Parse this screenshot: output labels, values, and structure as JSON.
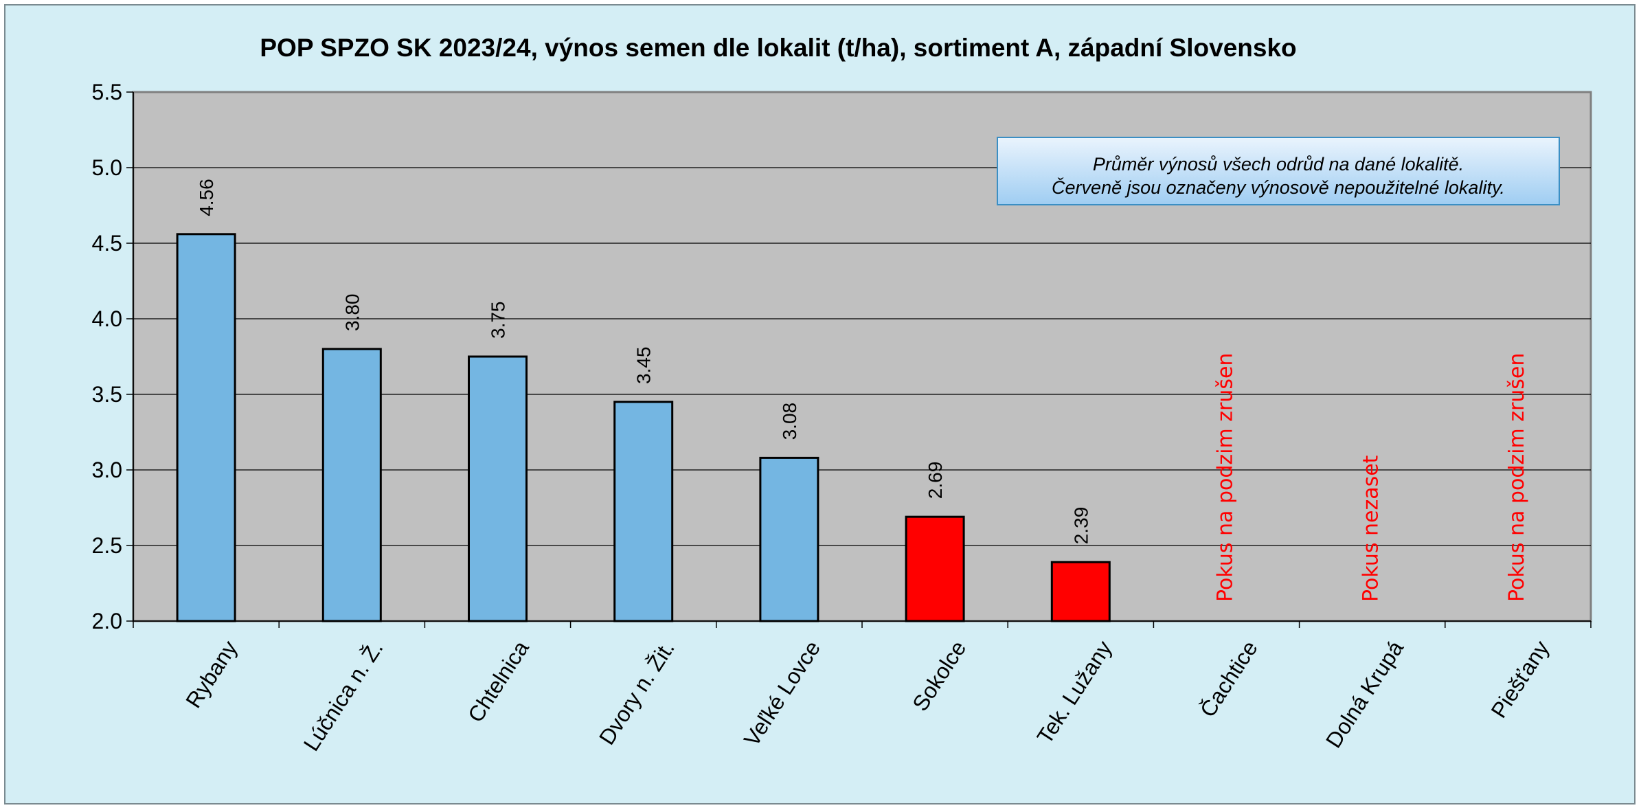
{
  "chart_data": {
    "type": "bar",
    "title": "POP SPZO SK 2023/24, výnos semen dle lokalit (t/ha), sortiment A, západní Slovensko",
    "xlabel": "",
    "ylabel": "",
    "ylim": [
      2.0,
      5.5
    ],
    "yticks": [
      "2.0",
      "2.5",
      "3.0",
      "3.5",
      "4.0",
      "4.5",
      "5.0",
      "5.5"
    ],
    "grid": true,
    "categories": [
      "Rybany",
      "Lúčnica n. Ž.",
      "Chtelnica",
      "Dvory n. Žit.",
      "Veľké Lovce",
      "Sokolce",
      "Tek. Lužany",
      "Čachtice",
      "Dolná Krupá",
      "Piešťany"
    ],
    "values": [
      4.56,
      3.8,
      3.75,
      3.45,
      3.08,
      2.69,
      2.39,
      null,
      null,
      null
    ],
    "value_labels": [
      "4.56",
      "3.80",
      "3.75",
      "3.45",
      "3.08",
      "2.69",
      "2.39",
      "",
      "",
      ""
    ],
    "bar_colors": [
      "#74b6e2",
      "#74b6e2",
      "#74b6e2",
      "#74b6e2",
      "#74b6e2",
      "#ff0000",
      "#ff0000",
      "",
      "",
      ""
    ],
    "notes": [
      "",
      "",
      "",
      "",
      "",
      "",
      "",
      "Pokus na podzim zrušen",
      "Pokus nezaset",
      "Pokus na podzim zrušen"
    ],
    "note_color": "#ff0000",
    "plot_background": "#c0c0c0",
    "annotation": {
      "line1": "Průměr výnosů všech odrůd na dané lokalitě.",
      "line2": "Červeně jsou označeny výnosově nepoužitelné lokality."
    }
  }
}
